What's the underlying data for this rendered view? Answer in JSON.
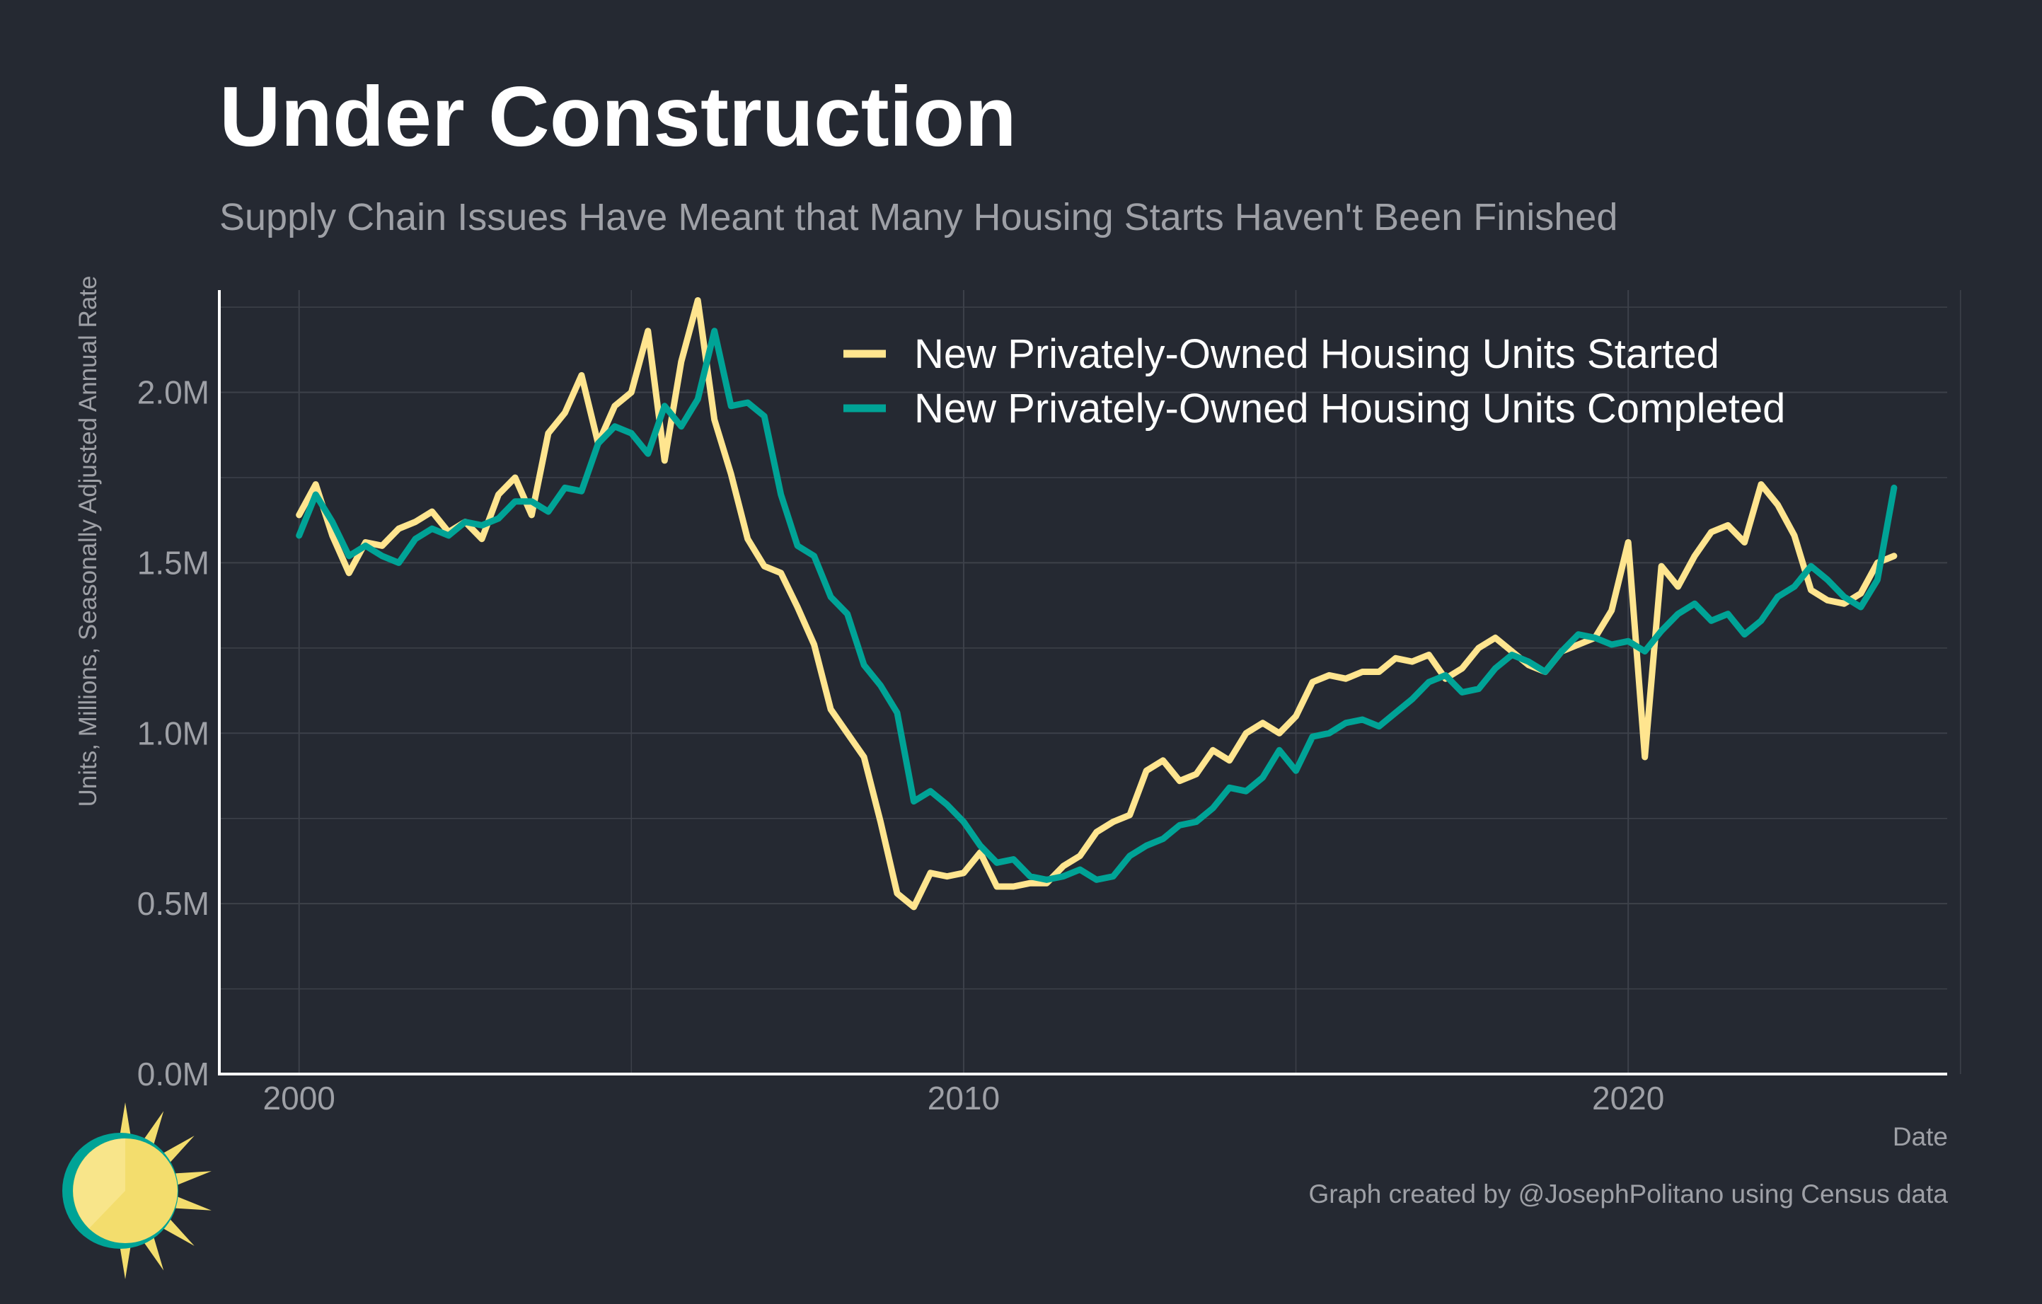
{
  "title": "Under Construction",
  "subtitle": "Supply Chain Issues Have Meant that Many Housing Starts Haven't Been Finished",
  "caption": "Graph created by @JosephPolitano using Census data",
  "colors": {
    "background": "#252932",
    "grid": "#3d414a",
    "axis": "#ffffff",
    "started": "#ffe58f",
    "completed": "#00a396",
    "logo_sun": "#f3dd6d",
    "logo_ring": "#00a396"
  },
  "chart_data": {
    "type": "line",
    "xlabel": "Date",
    "ylabel": "Units, Millions, Seasonally Adjusted Annual Rate",
    "xlim": [
      1998.8,
      2024.8
    ],
    "ylim": [
      0,
      2.3
    ],
    "x_ticks": [
      2000,
      2010,
      2020
    ],
    "x_tick_labels": [
      "2000",
      "2010",
      "2020"
    ],
    "y_ticks": [
      0,
      0.5,
      1.0,
      1.5,
      2.0
    ],
    "y_tick_labels": [
      "0.0M",
      "0.5M",
      "1.0M",
      "1.5M",
      "2.0M"
    ],
    "grid": true,
    "legend_position": "top-right",
    "series": [
      {
        "name": "New Privately-Owned Housing Units Started",
        "color": "#ffe58f",
        "x": [
          2000.0,
          2000.25,
          2000.5,
          2000.75,
          2001.0,
          2001.25,
          2001.5,
          2001.75,
          2002.0,
          2002.25,
          2002.5,
          2002.75,
          2003.0,
          2003.25,
          2003.5,
          2003.75,
          2004.0,
          2004.25,
          2004.5,
          2004.75,
          2005.0,
          2005.25,
          2005.5,
          2005.75,
          2006.0,
          2006.25,
          2006.5,
          2006.75,
          2007.0,
          2007.25,
          2007.5,
          2007.75,
          2008.0,
          2008.25,
          2008.5,
          2008.75,
          2009.0,
          2009.25,
          2009.5,
          2009.75,
          2010.0,
          2010.25,
          2010.5,
          2010.75,
          2011.0,
          2011.25,
          2011.5,
          2011.75,
          2012.0,
          2012.25,
          2012.5,
          2012.75,
          2013.0,
          2013.25,
          2013.5,
          2013.75,
          2014.0,
          2014.25,
          2014.5,
          2014.75,
          2015.0,
          2015.25,
          2015.5,
          2015.75,
          2016.0,
          2016.25,
          2016.5,
          2016.75,
          2017.0,
          2017.25,
          2017.5,
          2017.75,
          2018.0,
          2018.25,
          2018.5,
          2018.75,
          2019.0,
          2019.25,
          2019.5,
          2019.75,
          2020.0,
          2020.25,
          2020.5,
          2020.75,
          2021.0,
          2021.25,
          2021.5,
          2021.75,
          2022.0,
          2022.25,
          2022.5,
          2022.75,
          2023.0,
          2023.25,
          2023.5,
          2023.75,
          2024.0
        ],
        "values": [
          1.64,
          1.73,
          1.58,
          1.47,
          1.56,
          1.55,
          1.6,
          1.62,
          1.65,
          1.59,
          1.62,
          1.57,
          1.7,
          1.75,
          1.64,
          1.88,
          1.94,
          2.05,
          1.85,
          1.96,
          2.0,
          2.18,
          1.8,
          2.09,
          2.27,
          1.92,
          1.76,
          1.57,
          1.49,
          1.47,
          1.37,
          1.26,
          1.07,
          1.0,
          0.93,
          0.74,
          0.53,
          0.49,
          0.59,
          0.58,
          0.59,
          0.65,
          0.55,
          0.55,
          0.56,
          0.56,
          0.61,
          0.64,
          0.71,
          0.74,
          0.76,
          0.89,
          0.92,
          0.86,
          0.88,
          0.95,
          0.92,
          1.0,
          1.03,
          1.0,
          1.05,
          1.15,
          1.17,
          1.16,
          1.18,
          1.18,
          1.22,
          1.21,
          1.23,
          1.16,
          1.19,
          1.25,
          1.28,
          1.24,
          1.2,
          1.18,
          1.24,
          1.26,
          1.28,
          1.36,
          1.56,
          0.93,
          1.49,
          1.43,
          1.52,
          1.59,
          1.61,
          1.56,
          1.73,
          1.67,
          1.58,
          1.42,
          1.39,
          1.38,
          1.41,
          1.5,
          1.52
        ]
      },
      {
        "name": "New Privately-Owned Housing Units Completed",
        "color": "#00a396",
        "x": [
          2000.0,
          2000.25,
          2000.5,
          2000.75,
          2001.0,
          2001.25,
          2001.5,
          2001.75,
          2002.0,
          2002.25,
          2002.5,
          2002.75,
          2003.0,
          2003.25,
          2003.5,
          2003.75,
          2004.0,
          2004.25,
          2004.5,
          2004.75,
          2005.0,
          2005.25,
          2005.5,
          2005.75,
          2006.0,
          2006.25,
          2006.5,
          2006.75,
          2007.0,
          2007.25,
          2007.5,
          2007.75,
          2008.0,
          2008.25,
          2008.5,
          2008.75,
          2009.0,
          2009.25,
          2009.5,
          2009.75,
          2010.0,
          2010.25,
          2010.5,
          2010.75,
          2011.0,
          2011.25,
          2011.5,
          2011.75,
          2012.0,
          2012.25,
          2012.5,
          2012.75,
          2013.0,
          2013.25,
          2013.5,
          2013.75,
          2014.0,
          2014.25,
          2014.5,
          2014.75,
          2015.0,
          2015.25,
          2015.5,
          2015.75,
          2016.0,
          2016.25,
          2016.5,
          2016.75,
          2017.0,
          2017.25,
          2017.5,
          2017.75,
          2018.0,
          2018.25,
          2018.5,
          2018.75,
          2019.0,
          2019.25,
          2019.5,
          2019.75,
          2020.0,
          2020.25,
          2020.5,
          2020.75,
          2021.0,
          2021.25,
          2021.5,
          2021.75,
          2022.0,
          2022.25,
          2022.5,
          2022.75,
          2023.0,
          2023.25,
          2023.5,
          2023.75,
          2024.0
        ],
        "values": [
          1.58,
          1.7,
          1.62,
          1.52,
          1.55,
          1.52,
          1.5,
          1.57,
          1.6,
          1.58,
          1.62,
          1.61,
          1.63,
          1.68,
          1.68,
          1.65,
          1.72,
          1.71,
          1.85,
          1.9,
          1.88,
          1.82,
          1.96,
          1.9,
          1.98,
          2.18,
          1.96,
          1.97,
          1.93,
          1.7,
          1.55,
          1.52,
          1.4,
          1.35,
          1.2,
          1.14,
          1.06,
          0.8,
          0.83,
          0.79,
          0.74,
          0.67,
          0.62,
          0.63,
          0.58,
          0.57,
          0.58,
          0.6,
          0.57,
          0.58,
          0.64,
          0.67,
          0.69,
          0.73,
          0.74,
          0.78,
          0.84,
          0.83,
          0.87,
          0.95,
          0.89,
          0.99,
          1.0,
          1.03,
          1.04,
          1.02,
          1.06,
          1.1,
          1.15,
          1.17,
          1.12,
          1.13,
          1.19,
          1.23,
          1.21,
          1.18,
          1.24,
          1.29,
          1.28,
          1.26,
          1.27,
          1.24,
          1.3,
          1.35,
          1.38,
          1.33,
          1.35,
          1.29,
          1.33,
          1.4,
          1.43,
          1.49,
          1.45,
          1.4,
          1.37,
          1.45,
          1.72
        ]
      }
    ]
  }
}
